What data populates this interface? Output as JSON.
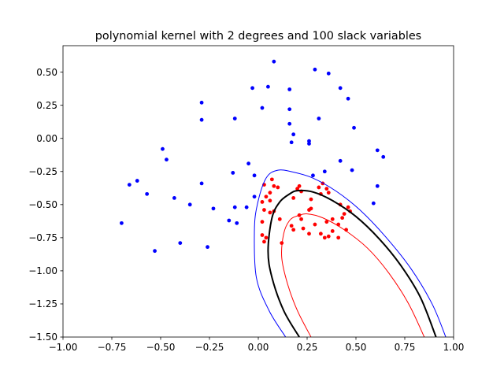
{
  "chart_data": {
    "type": "scatter",
    "title": "polynomial kernel with 2 degrees and 100 slack variables",
    "xlabel": "",
    "ylabel": "",
    "xlim": [
      -1.0,
      1.0
    ],
    "ylim": [
      -1.5,
      0.7
    ],
    "xticks": [
      "−1.00",
      "−0.75",
      "−0.50",
      "−0.25",
      "0.00",
      "0.25",
      "0.50",
      "0.75",
      "1.00"
    ],
    "xtick_values": [
      -1.0,
      -0.75,
      -0.5,
      -0.25,
      0.0,
      0.25,
      0.5,
      0.75,
      1.0
    ],
    "yticks": [
      "0.50",
      "0.25",
      "0.00",
      "−0.25",
      "−0.50",
      "−0.75",
      "−1.00",
      "−1.25",
      "−1.50"
    ],
    "ytick_values": [
      0.5,
      0.25,
      0.0,
      -0.25,
      -0.5,
      -0.75,
      -1.0,
      -1.25,
      -1.5
    ],
    "grid": false,
    "legend": "none",
    "colors": {
      "class_a": "#0000ff",
      "class_b": "#ff0000",
      "boundary": "#000000"
    },
    "series": [
      {
        "color": "#0000ff",
        "points": [
          [
            0.08,
            0.58
          ],
          [
            0.29,
            0.52
          ],
          [
            0.36,
            0.49
          ],
          [
            -0.03,
            0.38
          ],
          [
            0.05,
            0.39
          ],
          [
            0.16,
            0.37
          ],
          [
            0.42,
            0.38
          ],
          [
            0.46,
            0.3
          ],
          [
            -0.29,
            0.27
          ],
          [
            0.02,
            0.23
          ],
          [
            0.16,
            0.22
          ],
          [
            -0.29,
            0.14
          ],
          [
            -0.12,
            0.15
          ],
          [
            0.31,
            0.15
          ],
          [
            0.16,
            0.11
          ],
          [
            0.49,
            0.08
          ],
          [
            0.18,
            0.03
          ],
          [
            0.17,
            -0.03
          ],
          [
            0.26,
            -0.02
          ],
          [
            0.26,
            -0.04
          ],
          [
            -0.49,
            -0.08
          ],
          [
            -0.47,
            -0.16
          ],
          [
            0.61,
            -0.09
          ],
          [
            0.64,
            -0.14
          ],
          [
            0.42,
            -0.17
          ],
          [
            -0.05,
            -0.19
          ],
          [
            0.34,
            -0.25
          ],
          [
            0.48,
            -0.24
          ],
          [
            -0.13,
            -0.26
          ],
          [
            0.28,
            -0.28
          ],
          [
            -0.02,
            -0.28
          ],
          [
            -0.62,
            -0.32
          ],
          [
            -0.66,
            -0.35
          ],
          [
            -0.29,
            -0.34
          ],
          [
            0.61,
            -0.36
          ],
          [
            -0.57,
            -0.42
          ],
          [
            -0.02,
            -0.44
          ],
          [
            -0.43,
            -0.45
          ],
          [
            0.59,
            -0.49
          ],
          [
            -0.35,
            -0.5
          ],
          [
            -0.06,
            -0.52
          ],
          [
            -0.23,
            -0.53
          ],
          [
            -0.12,
            -0.52
          ],
          [
            -0.15,
            -0.62
          ],
          [
            -0.7,
            -0.64
          ],
          [
            -0.11,
            -0.64
          ],
          [
            -0.4,
            -0.79
          ],
          [
            -0.26,
            -0.82
          ],
          [
            -0.53,
            -0.85
          ]
        ]
      },
      {
        "color": "#ff0000",
        "points": [
          [
            0.07,
            -0.31
          ],
          [
            0.03,
            -0.35
          ],
          [
            0.08,
            -0.36
          ],
          [
            0.1,
            -0.37
          ],
          [
            0.06,
            -0.41
          ],
          [
            0.21,
            -0.36
          ],
          [
            0.2,
            -0.38
          ],
          [
            0.22,
            -0.4
          ],
          [
            0.31,
            -0.37
          ],
          [
            0.33,
            -0.34
          ],
          [
            0.35,
            -0.38
          ],
          [
            0.04,
            -0.44
          ],
          [
            0.32,
            -0.42
          ],
          [
            0.18,
            -0.45
          ],
          [
            0.36,
            -0.41
          ],
          [
            0.02,
            -0.48
          ],
          [
            0.06,
            -0.47
          ],
          [
            0.27,
            -0.46
          ],
          [
            0.03,
            -0.54
          ],
          [
            0.08,
            -0.55
          ],
          [
            0.06,
            -0.56
          ],
          [
            0.27,
            -0.53
          ],
          [
            0.26,
            -0.54
          ],
          [
            0.42,
            -0.5
          ],
          [
            0.46,
            -0.52
          ],
          [
            0.47,
            -0.55
          ],
          [
            0.21,
            -0.58
          ],
          [
            0.22,
            -0.61
          ],
          [
            0.44,
            -0.57
          ],
          [
            0.38,
            -0.61
          ],
          [
            0.43,
            -0.6
          ],
          [
            0.11,
            -0.61
          ],
          [
            0.02,
            -0.63
          ],
          [
            0.17,
            -0.66
          ],
          [
            0.29,
            -0.65
          ],
          [
            0.35,
            -0.63
          ],
          [
            0.41,
            -0.65
          ],
          [
            0.45,
            -0.69
          ],
          [
            0.18,
            -0.69
          ],
          [
            0.23,
            -0.68
          ],
          [
            0.26,
            -0.72
          ],
          [
            0.38,
            -0.7
          ],
          [
            0.32,
            -0.72
          ],
          [
            0.02,
            -0.73
          ],
          [
            0.34,
            -0.75
          ],
          [
            0.36,
            -0.74
          ],
          [
            0.41,
            -0.75
          ],
          [
            0.04,
            -0.75
          ],
          [
            0.03,
            -0.78
          ],
          [
            0.12,
            -0.79
          ]
        ]
      }
    ],
    "contours": [
      {
        "color": "#0000ff",
        "width": 1,
        "points": [
          [
            0.14,
            -1.5
          ],
          [
            0.055,
            -1.3
          ],
          [
            -0.01,
            -1.05
          ],
          [
            -0.02,
            -0.7
          ],
          [
            -0.005,
            -0.5
          ],
          [
            0.04,
            -0.3
          ],
          [
            0.1,
            -0.24
          ],
          [
            0.18,
            -0.255
          ],
          [
            0.28,
            -0.3
          ],
          [
            0.4,
            -0.4
          ],
          [
            0.52,
            -0.54
          ],
          [
            0.65,
            -0.74
          ],
          [
            0.78,
            -0.98
          ],
          [
            0.89,
            -1.25
          ],
          [
            0.96,
            -1.5
          ]
        ]
      },
      {
        "color": "#000000",
        "width": 2,
        "points": [
          [
            0.21,
            -1.5
          ],
          [
            0.13,
            -1.3
          ],
          [
            0.07,
            -1.05
          ],
          [
            0.05,
            -0.85
          ],
          [
            0.07,
            -0.6
          ],
          [
            0.11,
            -0.48
          ],
          [
            0.16,
            -0.42
          ],
          [
            0.2,
            -0.395
          ],
          [
            0.28,
            -0.405
          ],
          [
            0.38,
            -0.47
          ],
          [
            0.5,
            -0.59
          ],
          [
            0.62,
            -0.76
          ],
          [
            0.73,
            -0.96
          ],
          [
            0.83,
            -1.2
          ],
          [
            0.91,
            -1.5
          ]
        ]
      },
      {
        "color": "#ff0000",
        "width": 1,
        "points": [
          [
            0.27,
            -1.5
          ],
          [
            0.2,
            -1.3
          ],
          [
            0.15,
            -1.1
          ],
          [
            0.12,
            -0.9
          ],
          [
            0.13,
            -0.72
          ],
          [
            0.16,
            -0.62
          ],
          [
            0.2,
            -0.585
          ],
          [
            0.25,
            -0.57
          ],
          [
            0.33,
            -0.6
          ],
          [
            0.44,
            -0.69
          ],
          [
            0.56,
            -0.83
          ],
          [
            0.67,
            -1.02
          ],
          [
            0.77,
            -1.25
          ],
          [
            0.85,
            -1.5
          ]
        ]
      }
    ]
  }
}
